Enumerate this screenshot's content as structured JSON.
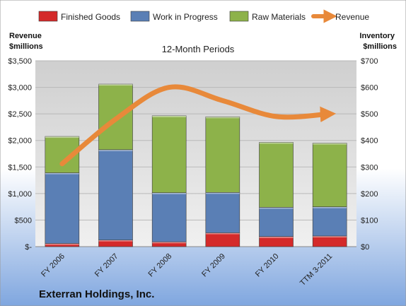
{
  "chart_data": {
    "type": "bar",
    "stacked": true,
    "subtitle": "12-Month Periods",
    "company": "Exterran Holdings, Inc.",
    "categories": [
      "FY 2006",
      "FY 2007",
      "FY 2008",
      "FY 2009",
      "FY 2010",
      "TTM 3-2011"
    ],
    "series": [
      {
        "name": "Finished Goods",
        "axis": "right",
        "color": "#d42a2a",
        "values": [
          12,
          25,
          18,
          52,
          38,
          40
        ]
      },
      {
        "name": "Work in Progress",
        "axis": "right",
        "color": "#5a7fb5",
        "values": [
          266,
          340,
          185,
          152,
          110,
          110
        ]
      },
      {
        "name": "Raw Materials",
        "axis": "right",
        "color": "#8db24a",
        "values": [
          137,
          247,
          290,
          285,
          245,
          240
        ]
      },
      {
        "name": "Revenue",
        "axis": "left",
        "type": "line",
        "color": "#e8893a",
        "values": [
          1560,
          2400,
          3000,
          2750,
          2450,
          2500
        ]
      }
    ],
    "y_left": {
      "label": "Revenue\n$millions",
      "ylim": [
        0,
        3500
      ],
      "ticks": [
        "$-",
        "$500",
        "$1,000",
        "$1,500",
        "$2,000",
        "$2,500",
        "$3,000",
        "$3,500"
      ]
    },
    "y_right": {
      "label": "Inventory\n$millions",
      "ylim": [
        0,
        700
      ],
      "ticks": [
        "$0",
        "$100",
        "$200",
        "$300",
        "$400",
        "$500",
        "$600",
        "$700"
      ]
    },
    "grid": true,
    "legend": "top"
  }
}
